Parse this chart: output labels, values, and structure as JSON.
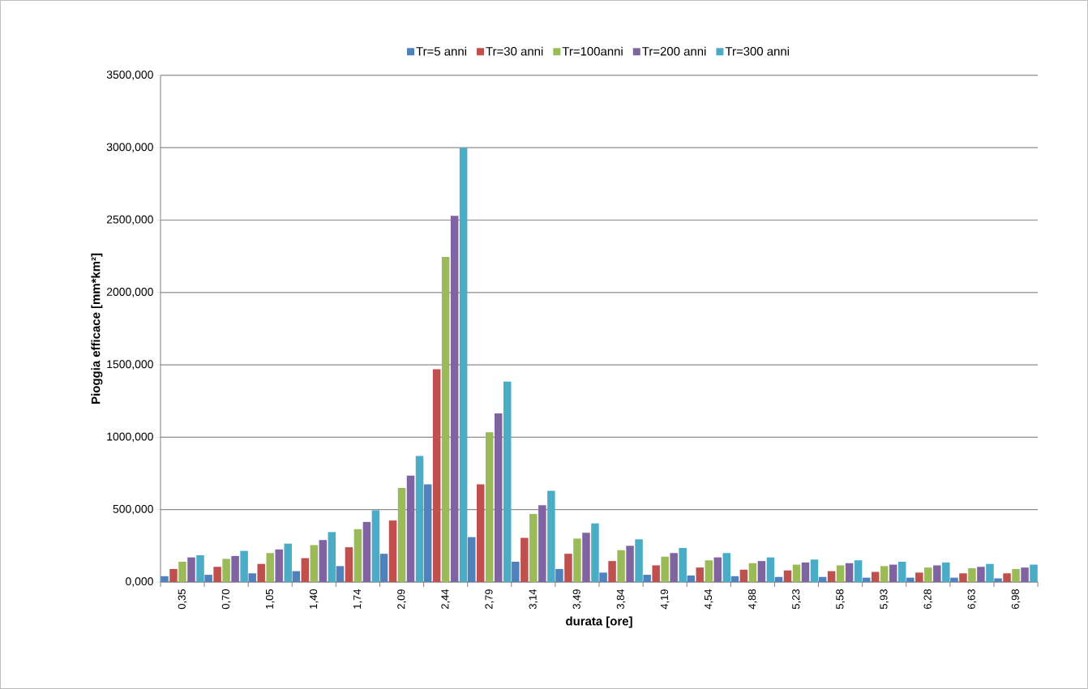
{
  "chart_data": {
    "type": "bar",
    "categories": [
      "0,35",
      "0,70",
      "1,05",
      "1,40",
      "1,74",
      "2,09",
      "2,44",
      "2,79",
      "3,14",
      "3,49",
      "3,84",
      "4,19",
      "4,54",
      "4,88",
      "5,23",
      "5,58",
      "5,93",
      "6,28",
      "6,63",
      "6,98"
    ],
    "series": [
      {
        "name": "Tr=5 anni",
        "color": "#4f81bd",
        "values": [
          40,
          50,
          60,
          75,
          110,
          195,
          675,
          310,
          140,
          90,
          65,
          50,
          45,
          40,
          35,
          35,
          30,
          30,
          30,
          25
        ]
      },
      {
        "name": "Tr=30 anni",
        "color": "#c0504d",
        "values": [
          90,
          105,
          125,
          165,
          240,
          425,
          1470,
          675,
          305,
          195,
          145,
          115,
          100,
          85,
          80,
          75,
          70,
          65,
          60,
          60
        ]
      },
      {
        "name": "Tr=100anni",
        "color": "#9bbb59",
        "values": [
          140,
          160,
          200,
          255,
          365,
          650,
          2245,
          1035,
          470,
          300,
          220,
          175,
          150,
          130,
          120,
          115,
          110,
          100,
          95,
          90
        ]
      },
      {
        "name": "Tr=200 anni",
        "color": "#8064a2",
        "values": [
          170,
          180,
          225,
          290,
          415,
          735,
          2530,
          1165,
          530,
          340,
          250,
          200,
          170,
          145,
          135,
          130,
          120,
          115,
          105,
          100
        ]
      },
      {
        "name": "Tr=300 anni",
        "color": "#4bacc6",
        "values": [
          185,
          215,
          265,
          345,
          495,
          870,
          3000,
          1385,
          630,
          405,
          295,
          235,
          200,
          170,
          155,
          150,
          140,
          135,
          125,
          120
        ]
      }
    ],
    "xlabel": "durata [ore]",
    "ylabel": "Pioggia efficace [mm*km²]",
    "ylim": [
      0,
      3500
    ],
    "yticks": [
      {
        "value": 0,
        "label": "0,000"
      },
      {
        "value": 500,
        "label": "500,000"
      },
      {
        "value": 1000,
        "label": "1000,000"
      },
      {
        "value": 1500,
        "label": "1500,000"
      },
      {
        "value": 2000,
        "label": "2000,000"
      },
      {
        "value": 2500,
        "label": "2500,000"
      },
      {
        "value": 3000,
        "label": "3000,000"
      },
      {
        "value": 3500,
        "label": "3500,000"
      }
    ],
    "grid": "y",
    "legend": "top"
  }
}
